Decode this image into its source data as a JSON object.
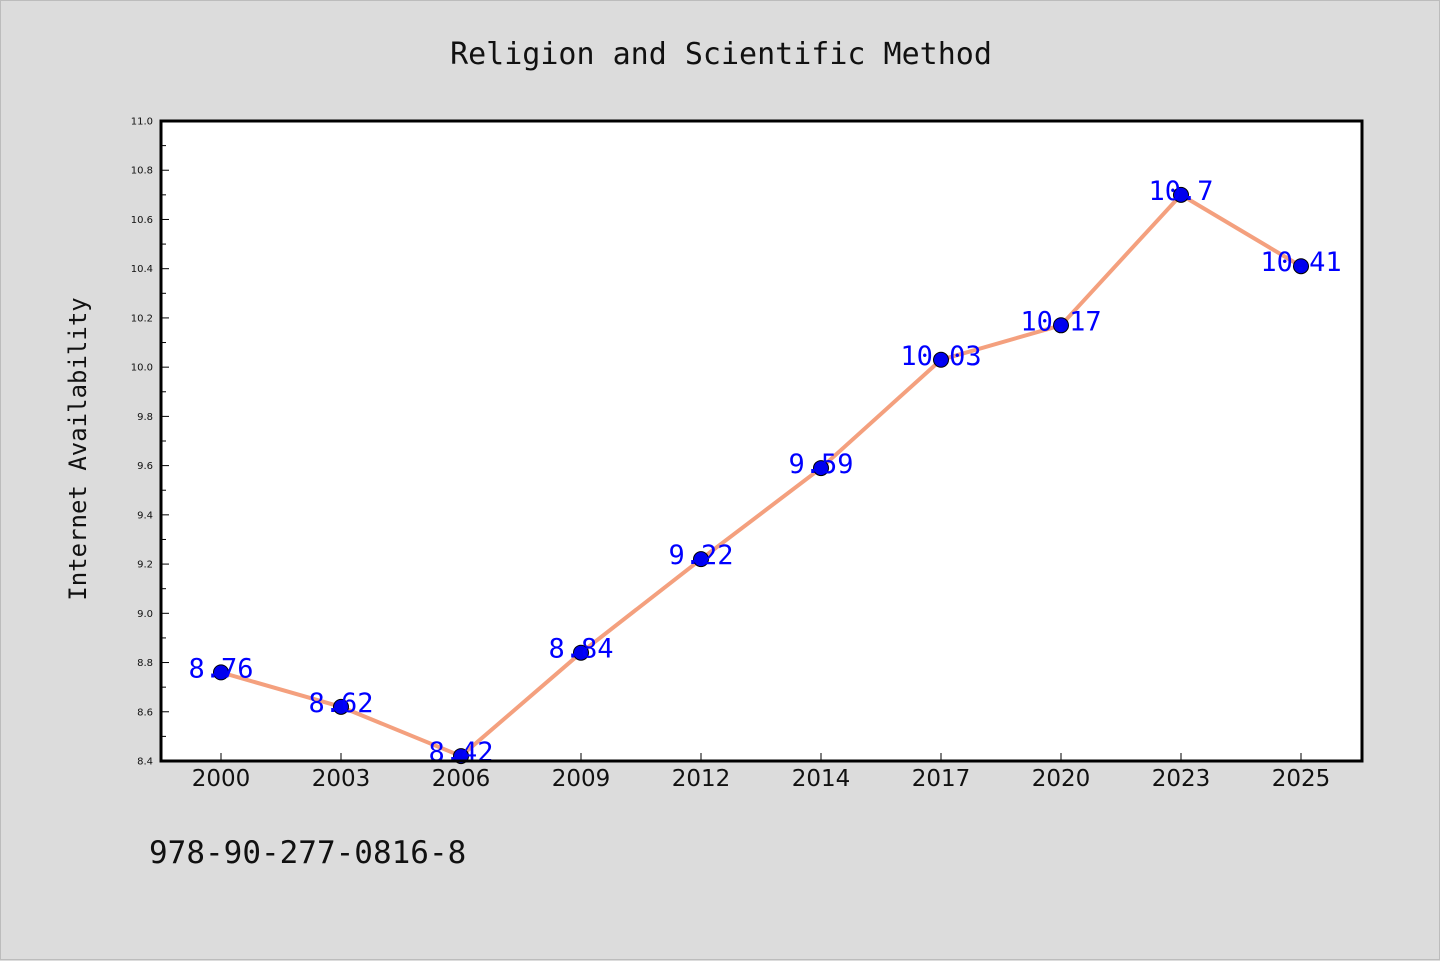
{
  "chart_data": {
    "type": "line",
    "title": "Religion and Scientific Method",
    "xlabel": "",
    "ylabel": "Internet Availability",
    "categories": [
      "2000",
      "2003",
      "2006",
      "2009",
      "2012",
      "2014",
      "2017",
      "2020",
      "2023",
      "2025"
    ],
    "series": [
      {
        "values": [
          8.76,
          8.62,
          8.42,
          8.84,
          9.22,
          9.59,
          10.03,
          10.17,
          10.7,
          10.41
        ],
        "labels": [
          "8.76",
          "8.62",
          "8.42",
          "8.84",
          "9.22",
          "9.59",
          "10.03",
          "10.17",
          "10.7",
          "10.41"
        ],
        "line_color": "#f4a07e",
        "marker_color": "#0000ee"
      }
    ],
    "ylim": [
      8.4,
      11.0
    ],
    "yticks": [
      "8.4",
      "8.6",
      "8.8",
      "9.0",
      "9.2",
      "9.4",
      "9.6",
      "9.8",
      "10.0",
      "10.2",
      "10.4",
      "10.6",
      "10.8",
      "11.0"
    ],
    "grid": false,
    "legend": "none",
    "label_color": "#0000ff",
    "plot_background": "#ffffff",
    "figure_background": "#dcdcdc"
  },
  "footer": {
    "code": "978-90-277-0816-8"
  }
}
